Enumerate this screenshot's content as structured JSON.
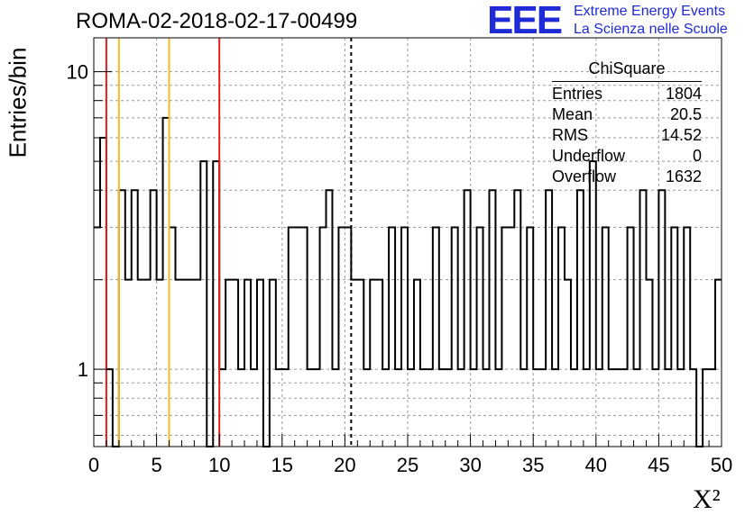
{
  "header": {
    "title": "ROMA-02-2018-02-17-00499",
    "logo_text": "EEE",
    "logo_line1": "Extreme Energy Events",
    "logo_line2": "La Scienza nelle Scuole"
  },
  "stats": {
    "title": "ChiSquare",
    "rows": [
      {
        "label": "Entries",
        "value": "1804"
      },
      {
        "label": "Mean",
        "value": "20.5"
      },
      {
        "label": "RMS",
        "value": "14.52"
      },
      {
        "label": "Underflow",
        "value": "0"
      },
      {
        "label": "Overflow",
        "value": "1632"
      }
    ]
  },
  "colors": {
    "logo": "#1f2bd6",
    "red_lines": "#e02020",
    "yellow_lines": "#f0c020",
    "grid": "#9a9a9a"
  },
  "chart_data": {
    "type": "bar",
    "histogram": "step",
    "xlabel": "X²",
    "ylabel": "Entries/bin",
    "xlim": [
      0,
      50
    ],
    "ylim": [
      0.55,
      13
    ],
    "yscale": "log",
    "grid": true,
    "bin_width": 0.5,
    "x_ticks": [
      0,
      5,
      10,
      15,
      20,
      25,
      30,
      35,
      40,
      45,
      50
    ],
    "y_ticks": [
      1,
      10
    ],
    "values": [
      3,
      6,
      1,
      0,
      4,
      2,
      4,
      2,
      2,
      4,
      2,
      7,
      3,
      2,
      2,
      2,
      2,
      5,
      0,
      5,
      1,
      2,
      2,
      1,
      2,
      1,
      2,
      0,
      2,
      1,
      1,
      3,
      3,
      3,
      1,
      1,
      3,
      4,
      1,
      3,
      3,
      2,
      2,
      1,
      2,
      2,
      1,
      3,
      1,
      3,
      1,
      2,
      1,
      1,
      3,
      1,
      1,
      3,
      1,
      4,
      1,
      3,
      1,
      4,
      1,
      3,
      3,
      4,
      1,
      3,
      1,
      1,
      4,
      1,
      3,
      2,
      1,
      4,
      1,
      5,
      1,
      3,
      1,
      1,
      1,
      3,
      1,
      4,
      2,
      1,
      4,
      1,
      3,
      1,
      3,
      1,
      0,
      1,
      1,
      2
    ],
    "vertical_lines": [
      {
        "x": 1,
        "color": "red"
      },
      {
        "x": 2,
        "color": "yellow"
      },
      {
        "x": 6,
        "color": "yellow"
      },
      {
        "x": 10,
        "color": "red"
      },
      {
        "x": 20.5,
        "color": "black",
        "style": "dashed"
      }
    ]
  }
}
